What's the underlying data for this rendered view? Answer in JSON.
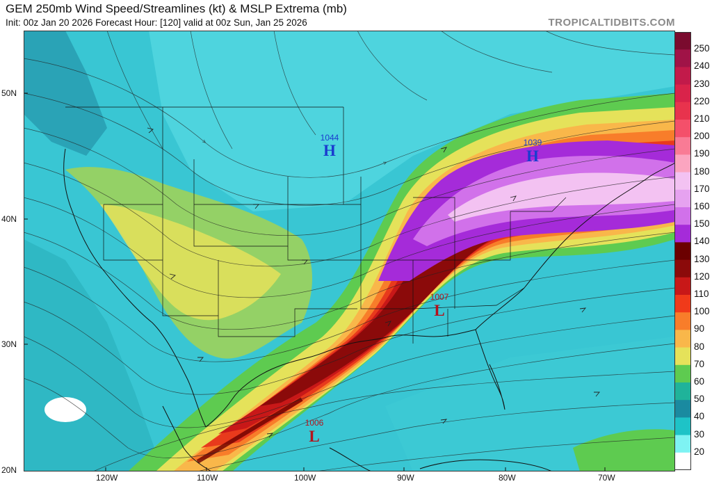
{
  "header": {
    "title": "GEM 250mb Wind Speed/Streamlines (kt) & MSLP Extrema (mb)",
    "subtitle": "Init: 00z Jan 20 2026   Forecast Hour: [120]   valid at 00z Sun, Jan 25 2026",
    "brand": "TROPICALTIDBITS.COM"
  },
  "axes": {
    "lat_labels": [
      "50N",
      "40N",
      "30N",
      "20N"
    ],
    "lon_labels": [
      "120W",
      "110W",
      "100W",
      "90W",
      "80W",
      "70W"
    ]
  },
  "colorbar": {
    "labels": [
      "250",
      "240",
      "230",
      "220",
      "210",
      "200",
      "190",
      "180",
      "170",
      "160",
      "150",
      "140",
      "130",
      "120",
      "110",
      "100",
      "90",
      "80",
      "70",
      "60",
      "50",
      "40",
      "30",
      "20"
    ],
    "colors": [
      "#7a0b2e",
      "#a01347",
      "#c21a4a",
      "#d9234a",
      "#e8334d",
      "#f4506a",
      "#f97b95",
      "#fba5c0",
      "#f3c2f2",
      "#e6a2f0",
      "#d171ea",
      "#a52bd9",
      "#6b0000",
      "#8b0a0a",
      "#c81818",
      "#f03a1a",
      "#f87d2a",
      "#f9b74a",
      "#e5e25a",
      "#5ecb50",
      "#1fb39a",
      "#1a8aa0",
      "#1ec3c7",
      "#7ef3f3",
      "#ffffff"
    ]
  },
  "pressure_extrema": [
    {
      "type": "H",
      "value": "1044"
    },
    {
      "type": "H",
      "value": "1039"
    },
    {
      "type": "L",
      "value": "1007"
    },
    {
      "type": "L",
      "value": "1006"
    }
  ]
}
